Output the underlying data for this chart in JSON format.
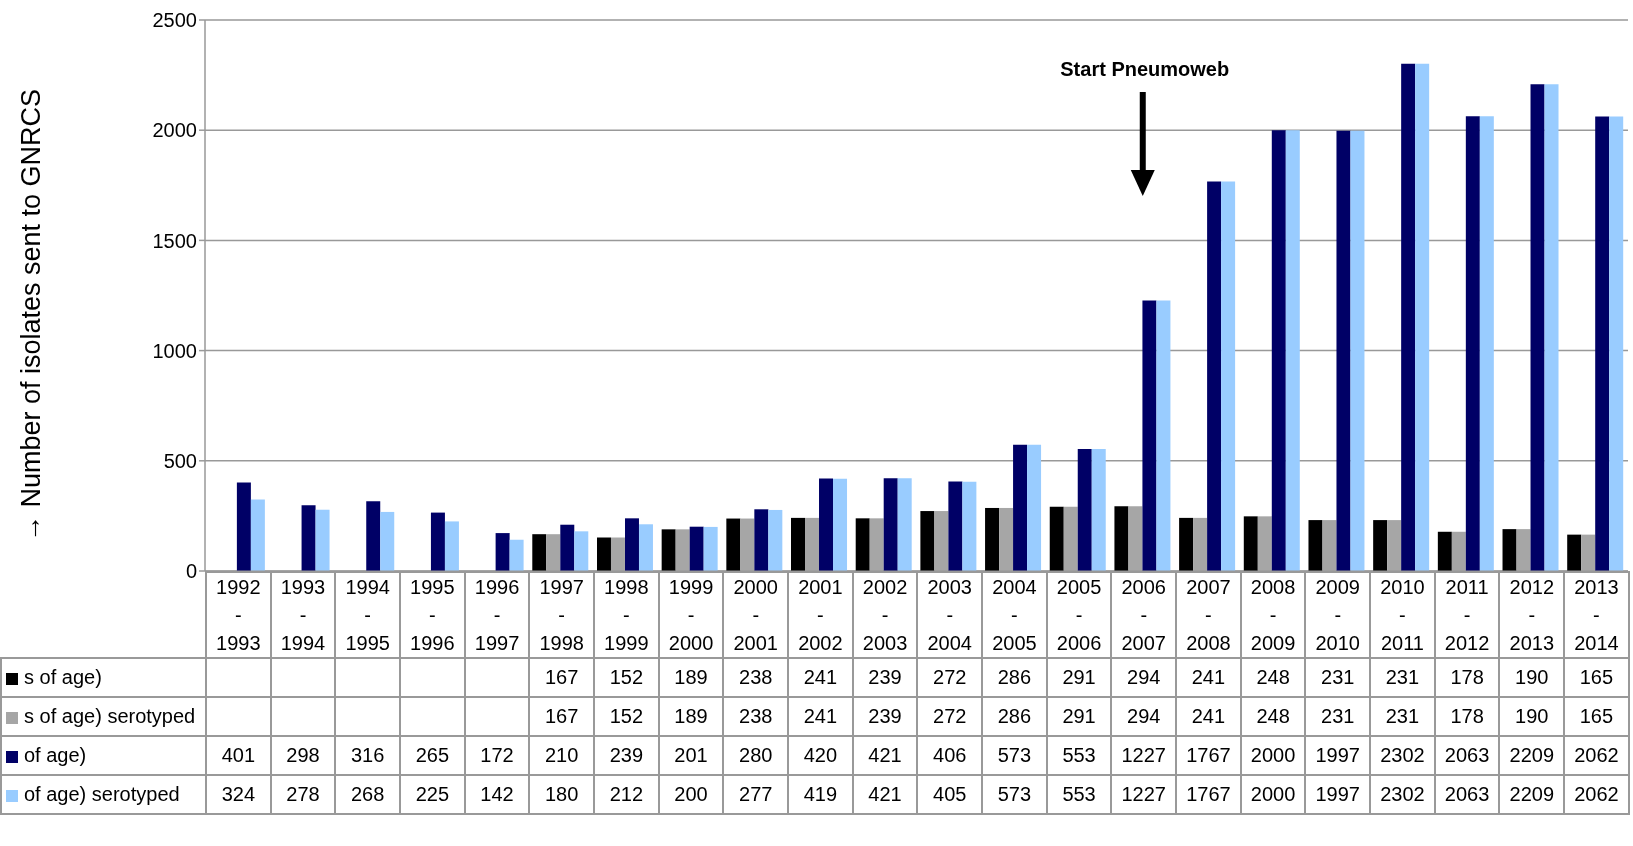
{
  "chart_data": {
    "type": "bar",
    "ylabel": "→ Number of isolates sent to GNRCS",
    "categories": [
      "1992-1993",
      "1993-1994",
      "1994-1995",
      "1995-1996",
      "1996-1997",
      "1997-1998",
      "1998-1999",
      "1999-2000",
      "2000-2001",
      "2001-2002",
      "2002-2003",
      "2003-2004",
      "2004-2005",
      "2005-2006",
      "2006-2007",
      "2007-2008",
      "2008-2009",
      "2009-2010",
      "2010-2011",
      "2011-2012",
      "2012-2013",
      "2013-2014"
    ],
    "series": [
      {
        "name": "s of age)",
        "color": "#000000",
        "values": [
          null,
          null,
          null,
          null,
          null,
          167,
          152,
          189,
          238,
          241,
          239,
          272,
          286,
          291,
          294,
          241,
          248,
          231,
          231,
          178,
          190,
          165
        ]
      },
      {
        "name": "s of age) serotyped",
        "color": "#a6a6a6",
        "values": [
          null,
          null,
          null,
          null,
          null,
          167,
          152,
          189,
          238,
          241,
          239,
          272,
          286,
          291,
          294,
          241,
          248,
          231,
          231,
          178,
          190,
          165
        ]
      },
      {
        "name": "of age)",
        "color": "#000066",
        "values": [
          401,
          298,
          316,
          265,
          172,
          210,
          239,
          201,
          280,
          420,
          421,
          406,
          573,
          553,
          1227,
          1767,
          2000,
          1997,
          2302,
          2063,
          2209,
          2062
        ]
      },
      {
        "name": "of age) serotyped",
        "color": "#99ccff",
        "values": [
          324,
          278,
          268,
          225,
          142,
          180,
          212,
          200,
          277,
          419,
          421,
          405,
          573,
          553,
          1227,
          1767,
          2000,
          1997,
          2302,
          2063,
          2209,
          2062
        ]
      }
    ],
    "ylim": [
      0,
      2500
    ],
    "yticks": [
      0,
      500,
      1000,
      1500,
      2000,
      2500
    ],
    "grid": "y",
    "data_labels": true,
    "legend": "bottom left",
    "annotations": [
      "Start Pneumoweb"
    ]
  }
}
